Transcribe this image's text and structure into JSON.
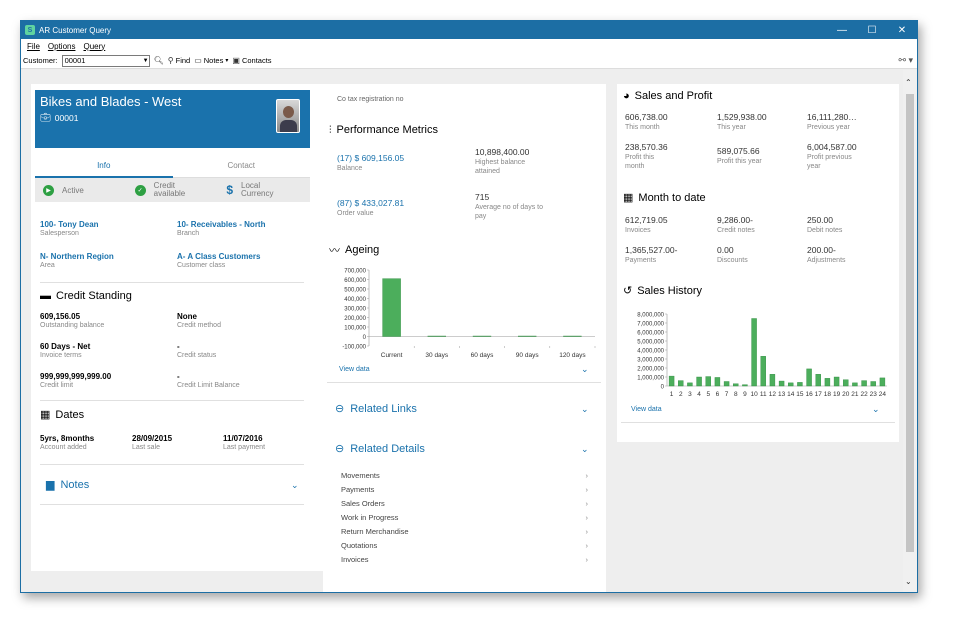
{
  "window": {
    "title": "AR Customer Query",
    "minimize": "—",
    "maximize": "☐",
    "close": "✕"
  },
  "menu": [
    "File",
    "Options",
    "Query"
  ],
  "toolbar": {
    "customer_label": "Customer:",
    "customer_value": "00001",
    "find": "Find",
    "notes": "Notes",
    "contacts": "Contacts"
  },
  "customer": {
    "name": "Bikes and Blades - West",
    "code": "00001"
  },
  "tabs": [
    "Info",
    "Contact"
  ],
  "status": {
    "active": "Active",
    "credit": "Credit\navailable",
    "currency": "Local\nCurrency"
  },
  "info": {
    "salesperson": {
      "value": "100- Tony Dean",
      "label": "Salesperson"
    },
    "branch": {
      "value": "10- Receivables - North",
      "label": "Branch"
    },
    "area": {
      "value": "N- Northern Region",
      "label": "Area"
    },
    "customer_class": {
      "value": "A- A Class Customers",
      "label": "Customer class"
    }
  },
  "credit_standing": {
    "title": "Credit Standing",
    "outstanding": {
      "value": "609,156.05",
      "label": "Outstanding balance"
    },
    "method": {
      "value": "None",
      "label": "Credit method"
    },
    "terms": {
      "value": "60 Days - Net",
      "label": "Invoice terms"
    },
    "status": {
      "value": "-",
      "label": "Credit status"
    },
    "limit": {
      "value": "999,999,999,999.00",
      "label": "Credit limit"
    },
    "limit_balance": {
      "value": "-",
      "label": "Credit Limit Balance"
    }
  },
  "dates": {
    "title": "Dates",
    "added": {
      "value": "5yrs, 8months",
      "label": "Account added"
    },
    "last_sale": {
      "value": "28/09/2015",
      "label": "Last sale"
    },
    "last_payment": {
      "value": "11/07/2016",
      "label": "Last payment"
    }
  },
  "notes_title": "Notes",
  "middle": {
    "tax_reg": "Co tax registration no",
    "performance_title": "Performance Metrics",
    "balance": {
      "value": "(17) $ 609,156.05",
      "label": "Balance"
    },
    "highest": {
      "value": "10,898,400.00",
      "label": "Highest balance\nattained"
    },
    "order_value": {
      "value": "(87) $ 433,027.81",
      "label": "Order value"
    },
    "avg_days": {
      "value": "715",
      "label": "Average no of days to\npay"
    },
    "ageing_title": "Ageing",
    "view_data": "View data",
    "related_links": "Related Links",
    "related_details": "Related Details",
    "details": [
      "Movements",
      "Payments",
      "Sales Orders",
      "Work in Progress",
      "Return Merchandise",
      "Quotations",
      "Invoices"
    ]
  },
  "right": {
    "sales_profit_title": "Sales and Profit",
    "sp": [
      {
        "value": "606,738.00",
        "label": "This month"
      },
      {
        "value": "1,529,938.00",
        "label": "This year"
      },
      {
        "value": "16,111,280…",
        "label": "Previous year"
      },
      {
        "value": "238,570.36",
        "label": "Profit this\nmonth"
      },
      {
        "value": "589,075.66",
        "label": "Profit this year"
      },
      {
        "value": "6,004,587.00",
        "label": "Profit previous\nyear"
      }
    ],
    "mtd_title": "Month to date",
    "mtd": [
      {
        "value": "612,719.05",
        "label": "Invoices"
      },
      {
        "value": "9,286.00-",
        "label": "Credit notes"
      },
      {
        "value": "250.00",
        "label": "Debit notes"
      },
      {
        "value": "1,365,527.00-",
        "label": "Payments"
      },
      {
        "value": "0.00",
        "label": "Discounts"
      },
      {
        "value": "200.00-",
        "label": "Adjustments"
      }
    ],
    "history_title": "Sales History",
    "view_data": "View data"
  },
  "chart_data": [
    {
      "type": "bar",
      "title": "Ageing",
      "categories": [
        "Current",
        "30 days",
        "60 days",
        "90 days",
        "120 days"
      ],
      "values": [
        609156,
        0,
        0,
        0,
        1500
      ],
      "ylim": [
        -100000,
        700000
      ],
      "yticks": [
        "700,000",
        "600,000",
        "500,000",
        "400,000",
        "300,000",
        "200,000",
        "100,000",
        "0",
        "-100,000"
      ],
      "color": "#4cae5c"
    },
    {
      "type": "bar",
      "title": "Sales History",
      "categories": [
        "1",
        "2",
        "3",
        "4",
        "5",
        "6",
        "7",
        "8",
        "9",
        "10",
        "11",
        "12",
        "13",
        "14",
        "15",
        "16",
        "17",
        "18",
        "19",
        "20",
        "21",
        "22",
        "23",
        "24"
      ],
      "values": [
        1100000,
        600000,
        350000,
        1000000,
        1050000,
        950000,
        500000,
        250000,
        150000,
        7500000,
        3300000,
        1300000,
        550000,
        350000,
        400000,
        1900000,
        1300000,
        850000,
        1000000,
        700000,
        350000,
        600000,
        500000,
        900000
      ],
      "ylim": [
        0,
        8000000
      ],
      "yticks": [
        "8,000,000",
        "7,000,000",
        "6,000,000",
        "5,000,000",
        "4,000,000",
        "3,000,000",
        "2,000,000",
        "1,000,000",
        "0"
      ],
      "color": "#4cae5c"
    }
  ]
}
